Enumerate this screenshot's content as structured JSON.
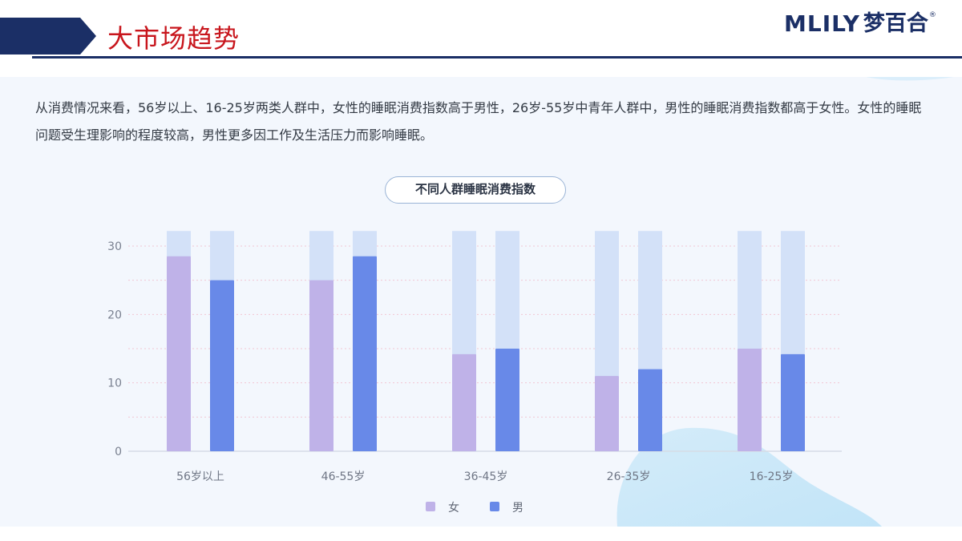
{
  "header": {
    "title": "大市场趋势",
    "logo_latin": "MLILY",
    "logo_cn": "梦百合",
    "logo_mark": "®"
  },
  "intro": {
    "text": "从消费情况来看，56岁以上、16-25岁两类人群中，女性的睡眠消费指数高于男性，26岁-55岁中青年人群中，男性的睡眠消费指数都高于女性。女性的睡眠问题受生理影响的程度较高，男性更多因工作及生活压力而影响睡眠。"
  },
  "colors": {
    "title_red": "#c8161d",
    "navy": "#1b2f66",
    "female": "#bfb2e8",
    "male": "#6889e8",
    "track": "#d3e1f8",
    "panel": "#f3f7fd"
  },
  "chart_data": {
    "type": "bar",
    "title": "不同人群睡眠消费指数",
    "categories": [
      "56岁以上",
      "46-55岁",
      "36-45岁",
      "26-35岁",
      "16-25岁"
    ],
    "series": [
      {
        "name": "女",
        "values": [
          28.5,
          25,
          14.2,
          11,
          15
        ]
      },
      {
        "name": "男",
        "values": [
          25,
          28.5,
          15,
          12,
          14.2
        ]
      }
    ],
    "background_max": 32.2,
    "ylim": [
      0,
      30
    ],
    "yticks": [
      0,
      10,
      20,
      30
    ],
    "grid": true,
    "legend": "bottom-center"
  }
}
